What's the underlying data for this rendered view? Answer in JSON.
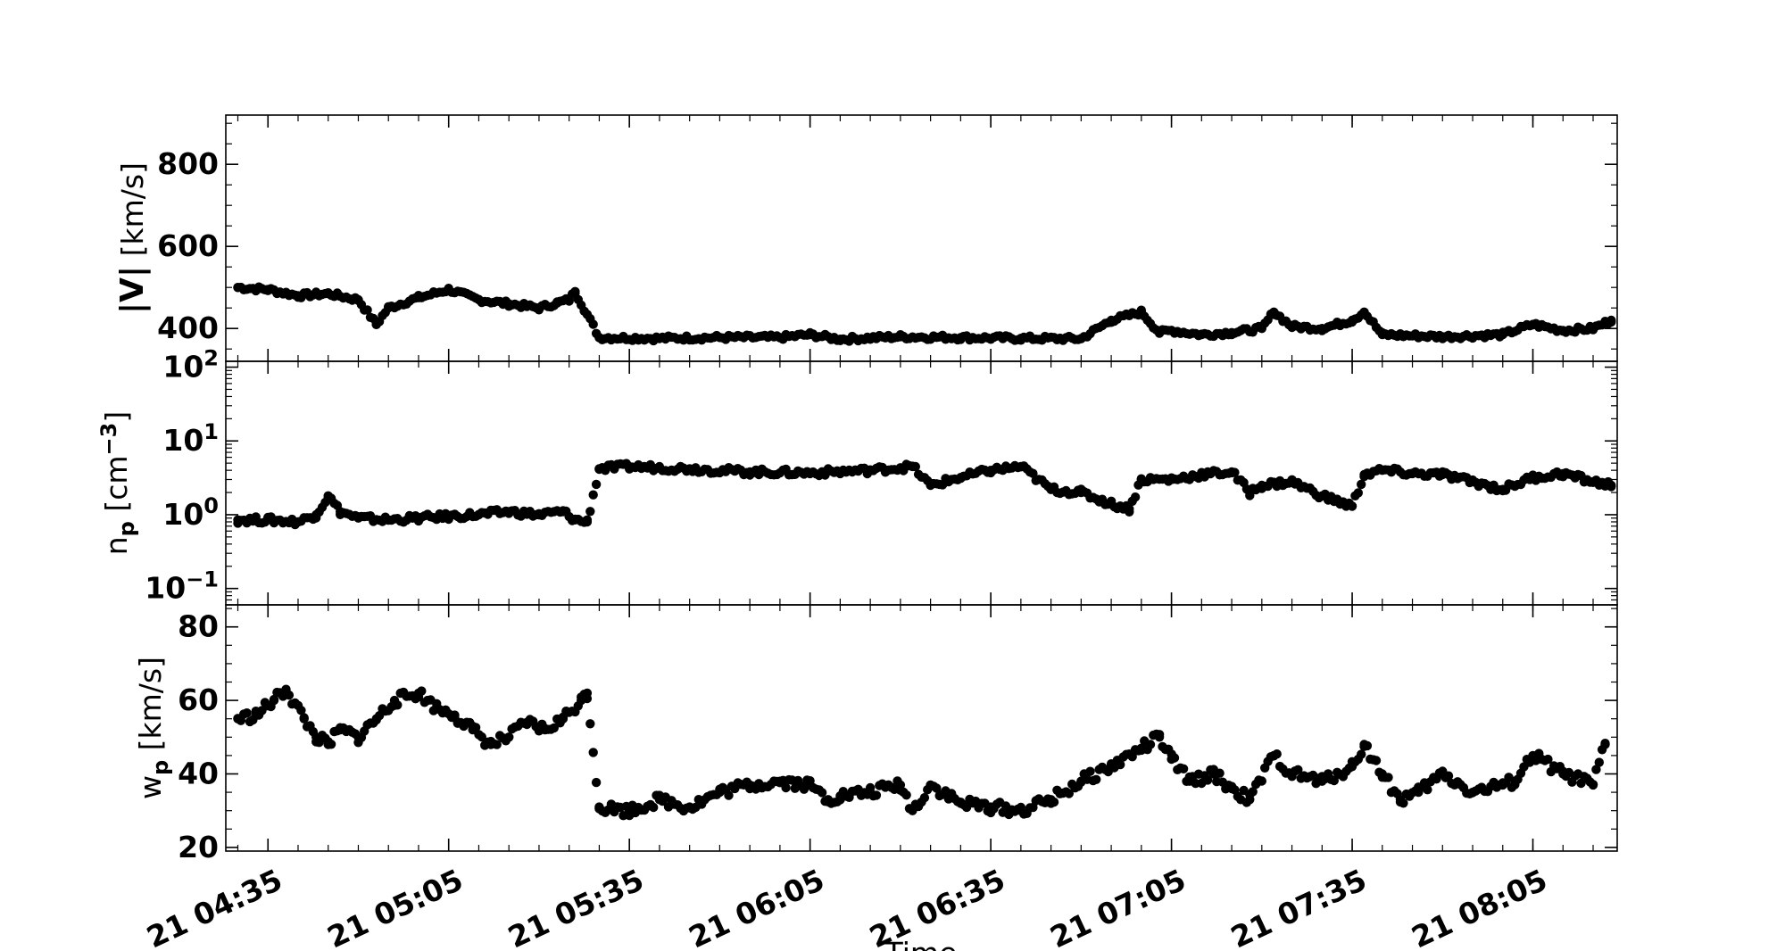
{
  "figure": {
    "xlabel": "Time",
    "x_tick_labels": [
      "21 04:35",
      "21 05:05",
      "21 05:35",
      "21 06:05",
      "21 06:35",
      "21 07:05",
      "21 07:35",
      "21 08:05"
    ]
  },
  "chart_data": [
    {
      "type": "scatter",
      "ylabel_bold": "|V|",
      "ylabel_rest": " [km/s]",
      "y_tick_labels": [
        "400",
        "600",
        "800"
      ],
      "ylim": [
        320,
        920
      ],
      "y_scale": "linear",
      "marker_color": "#000000",
      "series": [
        {
          "t": [
            "04:30",
            "04:35",
            "04:40",
            "04:45",
            "04:50",
            "04:53",
            "04:55",
            "05:00",
            "05:05",
            "05:10",
            "05:15",
            "05:20",
            "05:23",
            "05:25",
            "05:26",
            "05:30",
            "05:40",
            "05:50",
            "06:00",
            "06:05",
            "06:10",
            "06:20",
            "06:30",
            "06:40",
            "06:50",
            "06:55",
            "07:00",
            "07:03",
            "07:05",
            "07:10",
            "07:15",
            "07:20",
            "07:22",
            "07:25",
            "07:30",
            "07:35",
            "07:37",
            "07:40",
            "07:50",
            "08:00",
            "08:05",
            "08:10",
            "08:15",
            "08:18"
          ],
          "y": [
            500,
            495,
            480,
            485,
            470,
            410,
            450,
            475,
            495,
            470,
            460,
            450,
            462,
            470,
            490,
            378,
            376,
            378,
            378,
            385,
            374,
            380,
            378,
            376,
            375,
            420,
            440,
            390,
            395,
            385,
            390,
            400,
            440,
            405,
            400,
            420,
            440,
            385,
            380,
            385,
            410,
            395,
            400,
            420
          ]
        }
      ]
    },
    {
      "type": "scatter",
      "ylabel": "n",
      "ylabel_sub": "p",
      "ylabel_unit_pre": " [cm",
      "ylabel_unit_sup": "−3",
      "ylabel_unit_post": "]",
      "y_tick_labels": [
        {
          "base": "10",
          "exp": "−1"
        },
        {
          "base": "10",
          "exp": "0"
        },
        {
          "base": "10",
          "exp": "1"
        },
        {
          "base": "10",
          "exp": "2"
        }
      ],
      "ylim": [
        0.06,
        120
      ],
      "y_scale": "log",
      "marker_color": "#000000",
      "series": [
        {
          "t": [
            "04:30",
            "04:35",
            "04:40",
            "04:43",
            "04:45",
            "04:47",
            "04:50",
            "04:55",
            "05:00",
            "05:05",
            "05:10",
            "05:15",
            "05:20",
            "05:24",
            "05:26",
            "05:28",
            "05:30",
            "05:35",
            "05:45",
            "05:55",
            "06:05",
            "06:15",
            "06:22",
            "06:25",
            "06:30",
            "06:35",
            "06:40",
            "06:45",
            "06:50",
            "06:55",
            "06:58",
            "07:00",
            "07:05",
            "07:10",
            "07:15",
            "07:18",
            "07:20",
            "07:25",
            "07:30",
            "07:35",
            "07:37",
            "07:40",
            "07:45",
            "07:50",
            "07:55",
            "08:00",
            "08:05",
            "08:10",
            "08:15",
            "08:18"
          ],
          "y": [
            0.85,
            0.85,
            0.8,
            1.0,
            1.8,
            1.1,
            0.9,
            0.85,
            0.9,
            0.95,
            1.0,
            1.1,
            1.0,
            1.1,
            0.85,
            0.8,
            4.2,
            4.5,
            4.2,
            3.8,
            3.7,
            4.0,
            4.5,
            2.5,
            3.2,
            4.0,
            4.5,
            2.2,
            2.0,
            1.4,
            1.2,
            3.0,
            3.0,
            3.5,
            3.8,
            2.0,
            2.5,
            2.8,
            1.8,
            1.3,
            3.5,
            4.0,
            3.6,
            3.5,
            2.8,
            2.2,
            3.2,
            3.6,
            2.8,
            2.5
          ]
        }
      ]
    },
    {
      "type": "scatter",
      "ylabel": "w",
      "ylabel_sub": "p",
      "ylabel_unit": " [km/s]",
      "y_tick_labels": [
        "20",
        "40",
        "60",
        "80"
      ],
      "ylim": [
        19,
        86
      ],
      "y_scale": "linear",
      "marker_color": "#000000",
      "series": [
        {
          "t": [
            "04:30",
            "04:33",
            "04:36",
            "04:38",
            "04:41",
            "04:43",
            "04:45",
            "04:47",
            "04:50",
            "04:53",
            "04:56",
            "05:00",
            "05:03",
            "05:06",
            "05:09",
            "05:12",
            "05:15",
            "05:18",
            "05:21",
            "05:24",
            "05:27",
            "05:28",
            "05:30",
            "05:35",
            "05:40",
            "05:45",
            "05:50",
            "05:55",
            "06:00",
            "06:05",
            "06:08",
            "06:10",
            "06:15",
            "06:20",
            "06:22",
            "06:25",
            "06:30",
            "06:35",
            "06:40",
            "06:45",
            "06:50",
            "06:55",
            "07:00",
            "07:03",
            "07:05",
            "07:08",
            "07:12",
            "07:15",
            "07:18",
            "07:22",
            "07:25",
            "07:30",
            "07:35",
            "07:37",
            "07:40",
            "07:43",
            "07:46",
            "07:50",
            "07:55",
            "08:00",
            "08:02",
            "08:05",
            "08:10",
            "08:15",
            "08:17"
          ],
          "y": [
            55,
            56,
            60,
            63,
            55,
            50,
            48,
            52,
            50,
            55,
            60,
            62,
            58,
            56,
            52,
            48,
            50,
            54,
            52,
            55,
            60,
            62,
            31,
            30,
            33,
            31,
            35,
            37,
            38,
            37,
            33,
            34,
            35,
            37,
            30,
            37,
            32,
            31,
            30,
            33,
            38,
            42,
            47,
            50,
            44,
            38,
            40,
            36,
            33,
            45,
            40,
            38,
            42,
            48,
            40,
            33,
            35,
            40,
            35,
            37,
            38,
            45,
            40,
            37,
            48
          ]
        }
      ]
    }
  ]
}
